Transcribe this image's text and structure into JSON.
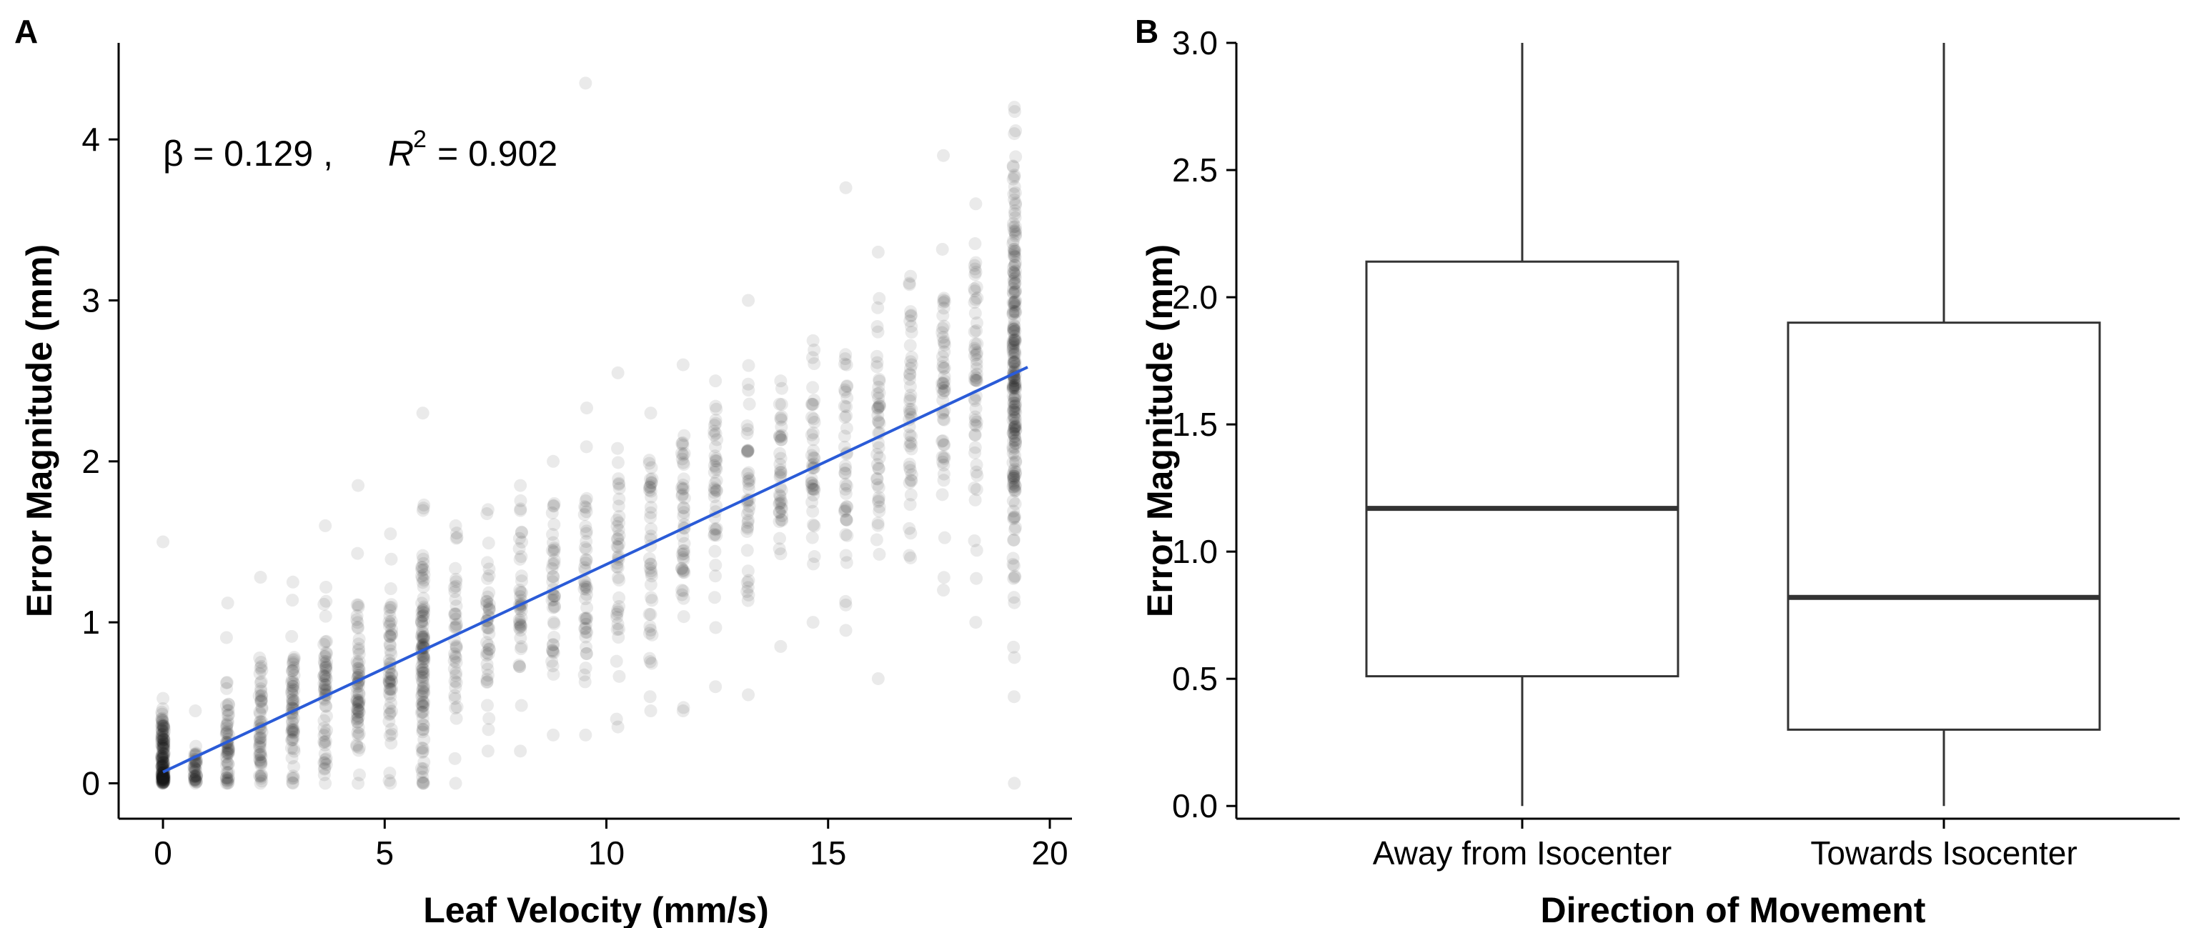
{
  "chart_data": [
    {
      "type": "scatter",
      "panel_label": "A",
      "xlabel": "Leaf Velocity (mm/s)",
      "ylabel": "Error Magnitude (mm)",
      "xlim": [
        -1,
        20.5
      ],
      "ylim": [
        -0.22,
        4.6
      ],
      "xticks": [
        0,
        5,
        10,
        15,
        20
      ],
      "yticks": [
        0,
        1,
        2,
        3,
        4
      ],
      "xtick_labels": [
        "0",
        "5",
        "10",
        "15",
        "20"
      ],
      "ytick_labels": [
        "0",
        "1",
        "2",
        "3",
        "4"
      ],
      "annotation": {
        "beta_symbol": "β",
        "beta_text": "= 0.129 ,",
        "r2_symbol": "R",
        "r2_superscript": "2",
        "r2_text": "= 0.902"
      },
      "regression": {
        "slope": 0.129,
        "intercept": 0.07,
        "x_range": [
          0,
          19.5
        ],
        "color": "#2a5bd7"
      },
      "point_color": "#111111",
      "point_columns": [
        {
          "x": 0.0,
          "mean": 0.12,
          "sd": 0.16,
          "n": 160,
          "min": 0.0,
          "max": 1.5
        },
        {
          "x": 0.73,
          "mean": 0.1,
          "sd": 0.1,
          "n": 40,
          "min": 0.0,
          "max": 0.45
        },
        {
          "x": 1.46,
          "mean": 0.22,
          "sd": 0.18,
          "n": 55,
          "min": 0.0,
          "max": 1.12
        },
        {
          "x": 2.2,
          "mean": 0.32,
          "sd": 0.22,
          "n": 55,
          "min": 0.0,
          "max": 1.28
        },
        {
          "x": 2.93,
          "mean": 0.43,
          "sd": 0.22,
          "n": 60,
          "min": 0.0,
          "max": 1.25
        },
        {
          "x": 3.66,
          "mean": 0.55,
          "sd": 0.25,
          "n": 60,
          "min": 0.0,
          "max": 1.6
        },
        {
          "x": 4.4,
          "mean": 0.62,
          "sd": 0.27,
          "n": 65,
          "min": 0.0,
          "max": 1.85
        },
        {
          "x": 5.13,
          "mean": 0.68,
          "sd": 0.28,
          "n": 55,
          "min": 0.0,
          "max": 1.55
        },
        {
          "x": 5.86,
          "mean": 0.78,
          "sd": 0.38,
          "n": 110,
          "min": 0.0,
          "max": 2.3
        },
        {
          "x": 6.6,
          "mean": 0.88,
          "sd": 0.3,
          "n": 40,
          "min": 0.0,
          "max": 1.6
        },
        {
          "x": 7.33,
          "mean": 0.96,
          "sd": 0.28,
          "n": 40,
          "min": 0.2,
          "max": 1.7
        },
        {
          "x": 8.06,
          "mean": 1.09,
          "sd": 0.32,
          "n": 40,
          "min": 0.2,
          "max": 1.85
        },
        {
          "x": 8.8,
          "mean": 1.18,
          "sd": 0.32,
          "n": 40,
          "min": 0.3,
          "max": 2.0
        },
        {
          "x": 9.53,
          "mean": 1.28,
          "sd": 0.38,
          "n": 45,
          "min": 0.3,
          "max": 4.35
        },
        {
          "x": 10.26,
          "mean": 1.38,
          "sd": 0.38,
          "n": 40,
          "min": 0.35,
          "max": 2.55
        },
        {
          "x": 11.0,
          "mean": 1.48,
          "sd": 0.38,
          "n": 40,
          "min": 0.45,
          "max": 2.3
        },
        {
          "x": 11.73,
          "mean": 1.58,
          "sd": 0.4,
          "n": 45,
          "min": 0.45,
          "max": 2.6
        },
        {
          "x": 12.46,
          "mean": 1.66,
          "sd": 0.38,
          "n": 40,
          "min": 0.6,
          "max": 2.5
        },
        {
          "x": 13.2,
          "mean": 1.75,
          "sd": 0.38,
          "n": 40,
          "min": 0.55,
          "max": 3.0
        },
        {
          "x": 13.93,
          "mean": 1.85,
          "sd": 0.36,
          "n": 40,
          "min": 0.85,
          "max": 2.5
        },
        {
          "x": 14.66,
          "mean": 1.95,
          "sd": 0.38,
          "n": 40,
          "min": 1.0,
          "max": 2.75
        },
        {
          "x": 15.4,
          "mean": 2.03,
          "sd": 0.38,
          "n": 40,
          "min": 0.95,
          "max": 3.7
        },
        {
          "x": 16.13,
          "mean": 2.13,
          "sd": 0.4,
          "n": 45,
          "min": 0.65,
          "max": 3.3
        },
        {
          "x": 16.86,
          "mean": 2.23,
          "sd": 0.42,
          "n": 45,
          "min": 1.4,
          "max": 3.15
        },
        {
          "x": 17.6,
          "mean": 2.33,
          "sd": 0.44,
          "n": 50,
          "min": 1.2,
          "max": 3.9
        },
        {
          "x": 18.33,
          "mean": 2.45,
          "sd": 0.45,
          "n": 55,
          "min": 1.0,
          "max": 3.6
        },
        {
          "x": 19.2,
          "mean": 2.6,
          "sd": 0.62,
          "n": 230,
          "min": 0.0,
          "max": 4.2
        }
      ]
    },
    {
      "type": "box",
      "panel_label": "B",
      "xlabel": "Direction of Movement",
      "ylabel": "Error Magnitude (mm)",
      "ylim": [
        -0.05,
        3.0
      ],
      "yticks": [
        0.0,
        0.5,
        1.0,
        1.5,
        2.0,
        2.5,
        3.0
      ],
      "ytick_labels": [
        "0.0",
        "0.5",
        "1.0",
        "1.5",
        "2.0",
        "2.5",
        "3.0"
      ],
      "categories": [
        "Away from Isocenter",
        "Towards Isocenter"
      ],
      "boxes": [
        {
          "category": "Away from Isocenter",
          "min": 0.0,
          "q1": 0.51,
          "median": 1.17,
          "q3": 2.14,
          "max": 3.0
        },
        {
          "category": "Towards Isocenter",
          "min": 0.0,
          "q1": 0.3,
          "median": 0.82,
          "q3": 1.9,
          "max": 3.0
        }
      ]
    }
  ]
}
